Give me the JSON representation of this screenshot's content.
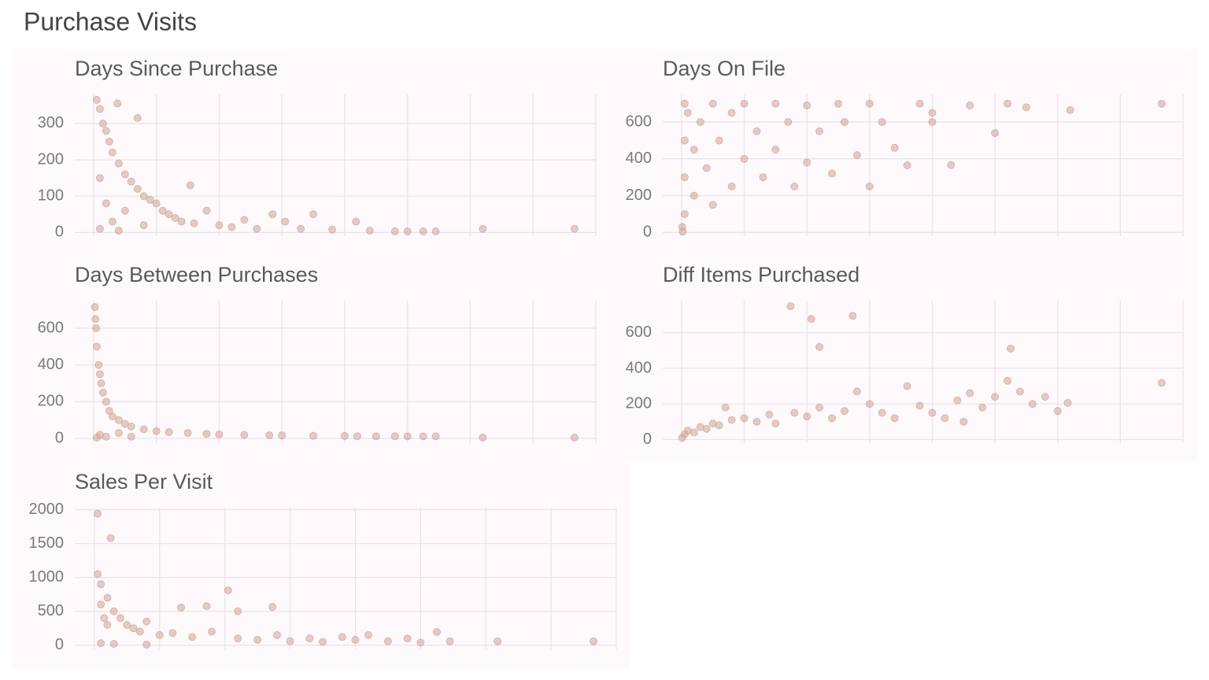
{
  "title": "Purchase Visits",
  "chart_data": [
    {
      "type": "scatter",
      "title": "Days Since Purchase",
      "color": "#cfa395",
      "xlim": [
        -3,
        80
      ],
      "xticks": [
        0,
        10,
        20,
        30,
        40,
        50,
        60,
        70,
        80
      ],
      "ylim": [
        -10,
        380
      ],
      "yticks": [
        0,
        100,
        200,
        300
      ],
      "grid": true,
      "x": [
        0.5,
        1,
        1.5,
        2,
        2.5,
        3,
        3.8,
        4,
        5,
        6,
        7,
        7,
        8,
        9,
        10,
        11,
        12,
        13,
        14,
        15.4,
        16,
        18,
        20,
        22,
        24,
        26,
        28.5,
        30.5,
        33,
        35,
        38,
        41.8,
        44,
        48,
        50,
        52.5,
        54.5,
        62,
        76.6,
        1,
        2,
        3,
        5,
        8,
        1,
        4
      ],
      "values": [
        365,
        340,
        300,
        280,
        250,
        220,
        355,
        190,
        160,
        140,
        315,
        120,
        100,
        90,
        80,
        60,
        50,
        40,
        30,
        130,
        25,
        60,
        20,
        15,
        35,
        10,
        50,
        30,
        10,
        50,
        8,
        30,
        5,
        3,
        3,
        3,
        3,
        10,
        10,
        150,
        80,
        30,
        60,
        20,
        10,
        5
      ]
    },
    {
      "type": "scatter",
      "title": "Days On File",
      "color": "#cfa395",
      "xlim": [
        -3,
        80
      ],
      "xticks": [
        0,
        10,
        20,
        30,
        40,
        50,
        60,
        70,
        80
      ],
      "ylim": [
        -20,
        750
      ],
      "yticks": [
        0,
        200,
        400,
        600
      ],
      "grid": true,
      "x": [
        0.2,
        0.5,
        0.5,
        0.5,
        0.5,
        1,
        2,
        2,
        3,
        4,
        5,
        5,
        6,
        8,
        8,
        10,
        10,
        12,
        13,
        15,
        15,
        17,
        18,
        20,
        20,
        22,
        24,
        25,
        26,
        28,
        30,
        30,
        32,
        34,
        36,
        38,
        40,
        40,
        43,
        46,
        50,
        52,
        55,
        62,
        76.6,
        0.1
      ],
      "values": [
        5,
        100,
        300,
        500,
        700,
        650,
        200,
        450,
        600,
        350,
        700,
        150,
        500,
        250,
        650,
        700,
        400,
        550,
        300,
        700,
        450,
        600,
        250,
        690,
        380,
        550,
        320,
        700,
        600,
        420,
        700,
        250,
        600,
        460,
        365,
        700,
        650,
        600,
        366,
        690,
        540,
        700,
        680,
        665,
        700,
        30
      ]
    },
    {
      "type": "scatter",
      "title": "Days Between Purchases",
      "color": "#cfa395",
      "xlim": [
        -3,
        80
      ],
      "xticks": [
        0,
        10,
        20,
        30,
        40,
        50,
        60,
        70,
        80
      ],
      "ylim": [
        -25,
        750
      ],
      "yticks": [
        0,
        200,
        400,
        600
      ],
      "grid": true,
      "x": [
        0.2,
        0.3,
        0.4,
        0.5,
        0.8,
        1,
        1.2,
        1.5,
        2,
        2.5,
        3,
        4,
        5,
        6,
        8,
        10,
        12,
        15,
        18,
        20,
        24,
        28,
        30,
        35,
        40,
        42,
        45,
        48,
        50,
        52.5,
        54.5,
        62,
        76.6,
        1,
        2,
        4,
        6,
        0.5
      ],
      "values": [
        715,
        650,
        600,
        500,
        400,
        350,
        300,
        250,
        200,
        150,
        120,
        100,
        80,
        65,
        50,
        40,
        35,
        30,
        25,
        22,
        20,
        18,
        17,
        15,
        14,
        12,
        12,
        12,
        12,
        12,
        12,
        5,
        5,
        20,
        10,
        30,
        10,
        5
      ]
    },
    {
      "type": "scatter",
      "title": "Diff Items Purchased",
      "color": "#cfa395",
      "xlim": [
        -3,
        80
      ],
      "xticks": [
        0,
        10,
        20,
        30,
        40,
        50,
        60,
        70,
        80
      ],
      "ylim": [
        -20,
        780
      ],
      "yticks": [
        0,
        200,
        400,
        600
      ],
      "grid": true,
      "x": [
        0.1,
        0.5,
        1,
        2,
        3,
        4,
        5,
        6,
        7,
        8,
        10,
        12,
        14,
        15,
        17.4,
        18,
        20,
        20.7,
        22,
        22,
        24,
        26,
        27.3,
        28,
        30,
        32,
        34,
        36,
        38,
        40,
        42,
        44,
        45,
        46,
        48,
        50,
        52,
        52.5,
        54,
        56,
        58,
        60,
        61.6,
        76.6
      ],
      "values": [
        10,
        30,
        50,
        40,
        70,
        60,
        90,
        80,
        180,
        110,
        120,
        100,
        140,
        90,
        749,
        150,
        130,
        677,
        520,
        180,
        120,
        160,
        695,
        270,
        200,
        150,
        120,
        300,
        190,
        150,
        120,
        220,
        100,
        260,
        180,
        240,
        330,
        511,
        269,
        200,
        240,
        160,
        206,
        318
      ]
    },
    {
      "type": "scatter",
      "title": "Sales Per Visit",
      "color": "#cfa395",
      "xlim": [
        -3,
        80
      ],
      "xticks": [
        0,
        10,
        20,
        30,
        40,
        50,
        60,
        70,
        80
      ],
      "ylim": [
        -60,
        2030
      ],
      "yticks": [
        0,
        500,
        1000,
        1500,
        2000
      ],
      "grid": true,
      "x": [
        0.5,
        0.5,
        1,
        1,
        1.5,
        2,
        2.5,
        2,
        3,
        4,
        5,
        6,
        7,
        8,
        10,
        12,
        13.3,
        15,
        17.2,
        18,
        20.5,
        22,
        22,
        25,
        27.3,
        28,
        30,
        33,
        35,
        38,
        40,
        42,
        45,
        48,
        50,
        52.5,
        54.5,
        61.8,
        76.5,
        1,
        3,
        8
      ],
      "values": [
        1940,
        1050,
        900,
        600,
        400,
        300,
        1580,
        700,
        500,
        400,
        300,
        250,
        200,
        350,
        150,
        180,
        555,
        120,
        577,
        200,
        810,
        500,
        100,
        80,
        565,
        150,
        60,
        100,
        50,
        120,
        80,
        150,
        60,
        100,
        40,
        196,
        58,
        58,
        58,
        30,
        20,
        10
      ]
    }
  ]
}
